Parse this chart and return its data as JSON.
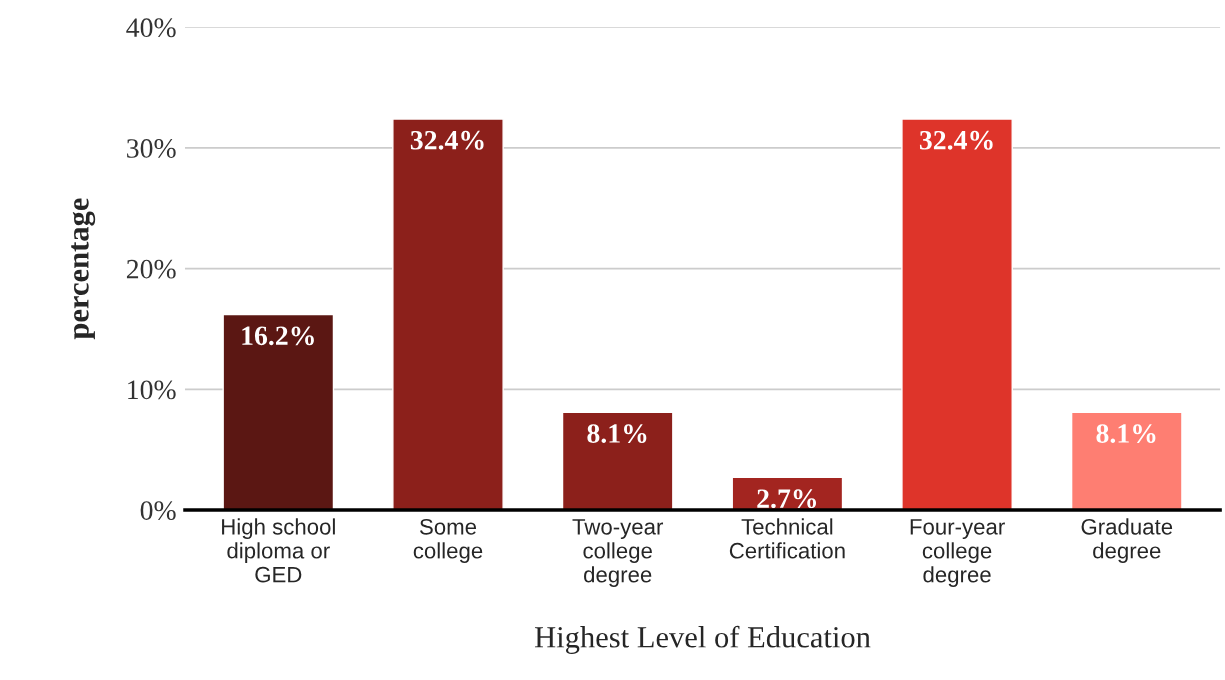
{
  "chart_data": {
    "type": "bar",
    "categories": [
      "High school\ndiploma or\nGED",
      "Some\ncollege",
      "Two-year\ncollege\ndegree",
      "Technical\nCertification",
      "Four-year\ncollege\ndegree",
      "Graduate\ndegree"
    ],
    "values": [
      16.2,
      32.4,
      8.1,
      2.7,
      32.4,
      8.1
    ],
    "value_labels": [
      "16.2%",
      "32.4%",
      "8.1%",
      "2.7%",
      "32.4%",
      "8.1%"
    ],
    "colors": [
      "#5b1713",
      "#8c201b",
      "#8c201b",
      "#a32520",
      "#de342a",
      "#fe7e72"
    ],
    "xlabel": "Highest Level of Education",
    "ylabel": "percentage",
    "ylim": [
      0,
      40
    ],
    "yticks": [
      {
        "value": 0,
        "label": "0%"
      },
      {
        "value": 10,
        "label": "10%"
      },
      {
        "value": 20,
        "label": "20%"
      },
      {
        "value": 30,
        "label": "30%"
      },
      {
        "value": 40,
        "label": "40%"
      }
    ],
    "grid": "y"
  }
}
